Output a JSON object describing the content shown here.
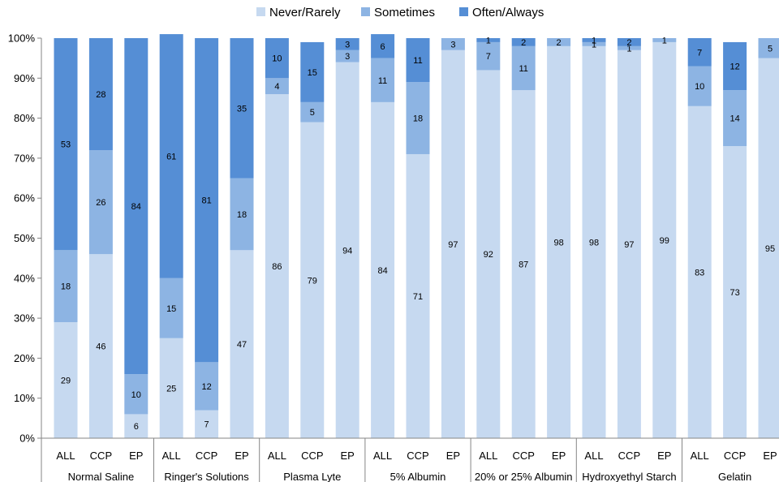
{
  "chart_data": {
    "type": "bar",
    "stacked": true,
    "orientation": "vertical",
    "legend": {
      "placement": "top",
      "entries": [
        {
          "name": "Never/Rarely",
          "color": "#c6d9f0"
        },
        {
          "name": "Sometimes",
          "color": "#8db4e3"
        },
        {
          "name": "Often/Always",
          "color": "#558ed5"
        }
      ]
    },
    "y_axis": {
      "ylim": [
        0,
        100
      ],
      "ticks": [
        "0%",
        "10%",
        "20%",
        "30%",
        "40%",
        "50%",
        "60%",
        "70%",
        "80%",
        "90%",
        "100%"
      ]
    },
    "grid": false,
    "groups": [
      {
        "name": "Normal Saline",
        "bars": [
          {
            "category": "ALL",
            "values": [
              29,
              18,
              53
            ]
          },
          {
            "category": "CCP",
            "values": [
              46,
              26,
              28
            ]
          },
          {
            "category": "EP",
            "values": [
              6,
              10,
              84
            ]
          }
        ]
      },
      {
        "name": "Ringer's Solutions",
        "bars": [
          {
            "category": "ALL",
            "values": [
              25,
              15,
              61
            ]
          },
          {
            "category": "CCP",
            "values": [
              7,
              12,
              81
            ]
          },
          {
            "category": "EP",
            "values": [
              47,
              18,
              35
            ]
          }
        ]
      },
      {
        "name": "Plasma Lyte",
        "bars": [
          {
            "category": "ALL",
            "values": [
              86,
              4,
              10
            ]
          },
          {
            "category": "CCP",
            "values": [
              79,
              5,
              15
            ]
          },
          {
            "category": "EP",
            "values": [
              94,
              3,
              3
            ]
          }
        ]
      },
      {
        "name": "5% Albumin",
        "bars": [
          {
            "category": "ALL",
            "values": [
              84,
              11,
              6
            ]
          },
          {
            "category": "CCP",
            "values": [
              71,
              18,
              11
            ]
          },
          {
            "category": "EP",
            "values": [
              97,
              3,
              0
            ]
          }
        ]
      },
      {
        "name": "20% or 25% Albumin",
        "bars": [
          {
            "category": "ALL",
            "values": [
              92,
              7,
              1
            ]
          },
          {
            "category": "CCP",
            "values": [
              87,
              11,
              2
            ]
          },
          {
            "category": "EP",
            "values": [
              98,
              2,
              0
            ]
          }
        ]
      },
      {
        "name": "Hydroxyethyl Starch",
        "bars": [
          {
            "category": "ALL",
            "values": [
              98,
              1,
              1
            ]
          },
          {
            "category": "CCP",
            "values": [
              97,
              1,
              2
            ]
          },
          {
            "category": "EP",
            "values": [
              99,
              1,
              0
            ]
          }
        ]
      },
      {
        "name": "Gelatin",
        "bars": [
          {
            "category": "ALL",
            "values": [
              83,
              10,
              7
            ]
          },
          {
            "category": "CCP",
            "values": [
              73,
              14,
              12
            ]
          },
          {
            "category": "EP",
            "values": [
              95,
              5,
              0
            ]
          }
        ]
      }
    ]
  }
}
